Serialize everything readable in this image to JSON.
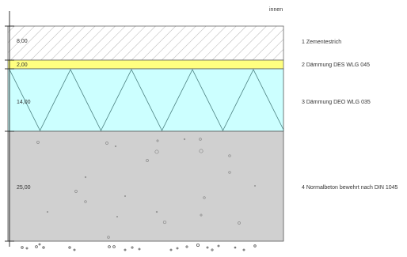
{
  "header": {
    "side_label": "innen"
  },
  "layers": [
    {
      "thickness": "8,00",
      "name": "1 Zementestrich",
      "pattern": "diagonal-hatch",
      "fill": "#ffffff"
    },
    {
      "thickness": "2,00",
      "name": "2 Dämmung DES WLG 045",
      "pattern": "solid",
      "fill": "#ffff80"
    },
    {
      "thickness": "14,00",
      "name": "3 Dämmung DEO WLG 035",
      "pattern": "zigzag",
      "fill": "#ccffff"
    },
    {
      "thickness": "25,00",
      "name": "4 Normalbeton bewehrt nach DIN 1045",
      "pattern": "aggregate-dots",
      "fill": "#d0d0d0"
    }
  ],
  "colors": {
    "outline": "#333333",
    "hatch": "#b0b0b0",
    "text": "#333333",
    "insulation_line": "#4a8080",
    "ground_dot": "#555555"
  }
}
